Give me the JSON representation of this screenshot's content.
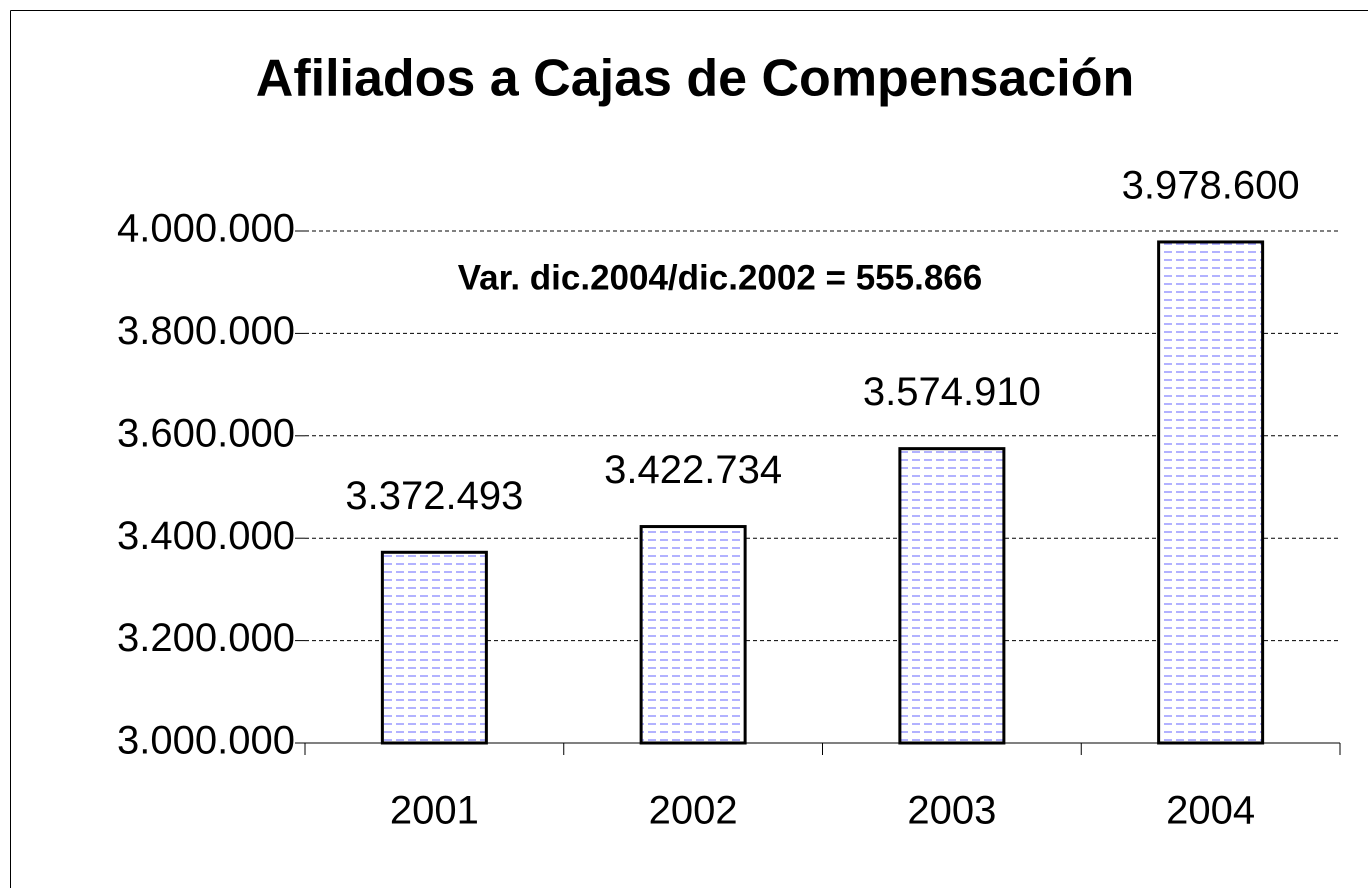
{
  "chart_data": {
    "type": "bar",
    "title": "Afiliados a Cajas de Compensación",
    "annotation": "Var. dic.2004/dic.2002 = 555.866",
    "categories": [
      "2001",
      "2002",
      "2003",
      "2004"
    ],
    "values": [
      3372493,
      3422734,
      3574910,
      3978600
    ],
    "value_labels": [
      "3.372.493",
      "3.422.734",
      "3.574.910",
      "3.978.600"
    ],
    "color": "#9999ff",
    "ylim": [
      3000000,
      4000000
    ],
    "yticks": [
      {
        "value": 3000000,
        "label": "3.000.000"
      },
      {
        "value": 3200000,
        "label": "3.200.000"
      },
      {
        "value": 3400000,
        "label": "3.400.000"
      },
      {
        "value": 3600000,
        "label": "3.600.000"
      },
      {
        "value": 3800000,
        "label": "3.800.000"
      },
      {
        "value": 4000000,
        "label": "4.000.000"
      }
    ],
    "grid": true
  }
}
